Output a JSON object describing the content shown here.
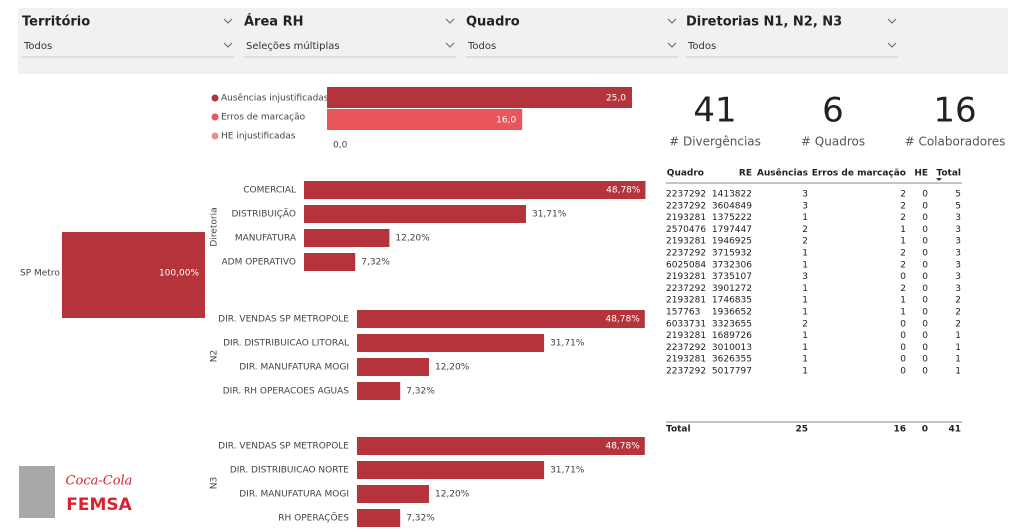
{
  "filters": [
    {
      "label": "Território",
      "value": "Todos"
    },
    {
      "label": "Área RH",
      "value": "Seleções múltiplas"
    },
    {
      "label": "Quadro",
      "value": "Todos"
    },
    {
      "label": "Diretorias N1, N2, N3",
      "value": "Todos"
    }
  ],
  "absence_chart": {
    "categories": [
      "Ausências injustificadas",
      "Erros de marcação",
      "HE injustificadas"
    ],
    "values": [
      25,
      16,
      0
    ],
    "value_labels": [
      "25,0",
      "16,0",
      "0,0"
    ],
    "colors": [
      "#b5333a",
      "#e8555a",
      "#f08a8e"
    ]
  },
  "kpis": [
    {
      "value": 41,
      "label": "# Divergências"
    },
    {
      "value": 6,
      "label": "# Quadros"
    },
    {
      "value": 16,
      "label": "# Colaboradores"
    }
  ],
  "territory_chart": {
    "categories": [
      "SP Metro"
    ],
    "values": [
      100
    ],
    "value_labels": [
      "100,00%"
    ],
    "color": "#b5333a"
  },
  "diretoria_chart": {
    "axis_title": "Diretoria",
    "categories": [
      "COMERCIAL",
      "DISTRIBUIÇÃO",
      "MANUFATURA",
      "ADM OPERATIVO"
    ],
    "values": [
      48.78,
      31.71,
      12.2,
      7.32
    ],
    "value_labels": [
      "48,78%",
      "31,71%",
      "12,20%",
      "7,32%"
    ],
    "color": "#b5333a"
  },
  "n2_chart": {
    "axis_title": "N2",
    "categories": [
      "DIR. VENDAS SP METROPOLE",
      "DIR. DISTRIBUICAO LITORAL",
      "DIR. MANUFATURA MOGI",
      "DIR. RH OPERACOES AGUAS"
    ],
    "values": [
      48.78,
      31.71,
      12.2,
      7.32
    ],
    "value_labels": [
      "48,78%",
      "31,71%",
      "12,20%",
      "7,32%"
    ],
    "color": "#b5333a"
  },
  "n3_chart": {
    "axis_title": "N3",
    "categories": [
      "DIR. VENDAS SP METROPOLE",
      "DIR. DISTRIBUICAO NORTE",
      "DIR. MANUFATURA MOGI",
      "RH OPERAÇÕES"
    ],
    "values": [
      48.78,
      31.71,
      12.2,
      7.32
    ],
    "value_labels": [
      "48,78%",
      "31,71%",
      "12,20%",
      "7,32%"
    ],
    "color": "#b5333a"
  },
  "table": {
    "columns": [
      "Quadro",
      "RE",
      "Ausências",
      "Erros de marcação",
      "HE",
      "Total"
    ],
    "rows": [
      [
        2237292,
        1413822,
        3,
        2,
        0,
        5
      ],
      [
        2237292,
        3604849,
        3,
        2,
        0,
        5
      ],
      [
        2193281,
        1375222,
        1,
        2,
        0,
        3
      ],
      [
        2570476,
        1797447,
        2,
        1,
        0,
        3
      ],
      [
        2193281,
        1946925,
        2,
        1,
        0,
        3
      ],
      [
        2237292,
        3715932,
        1,
        2,
        0,
        3
      ],
      [
        6025084,
        3732306,
        1,
        2,
        0,
        3
      ],
      [
        2193281,
        3735107,
        3,
        0,
        0,
        3
      ],
      [
        2237292,
        3901272,
        1,
        2,
        0,
        3
      ],
      [
        2193281,
        1746835,
        1,
        1,
        0,
        2
      ],
      [
        157763,
        1936652,
        1,
        1,
        0,
        2
      ],
      [
        6033731,
        3323655,
        2,
        0,
        0,
        2
      ],
      [
        2193281,
        1689726,
        1,
        0,
        0,
        1
      ],
      [
        2237292,
        3010013,
        1,
        0,
        0,
        1
      ],
      [
        2193281,
        3626355,
        1,
        0,
        0,
        1
      ],
      [
        2237292,
        5017797,
        1,
        0,
        0,
        1
      ]
    ],
    "total": {
      "label": "Total",
      "values": [
        25,
        16,
        0,
        41
      ]
    }
  },
  "logo": {
    "line1": "Coca-Cola",
    "line2": "FEMSA"
  }
}
